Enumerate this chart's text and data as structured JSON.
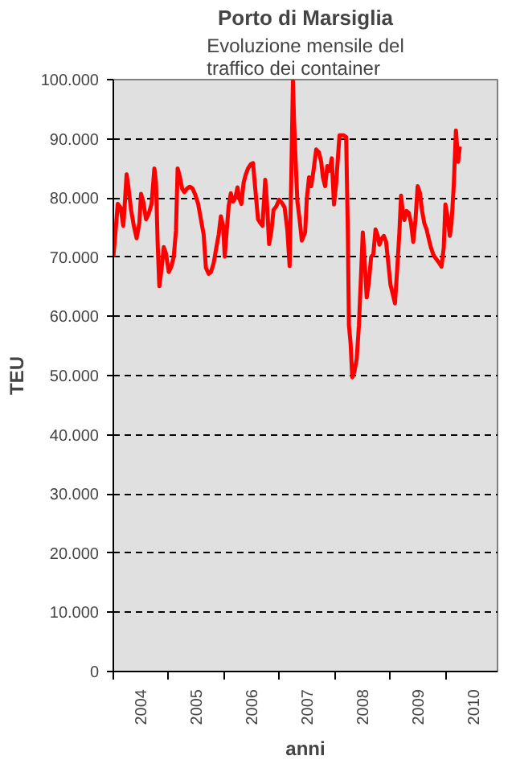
{
  "chart_data": {
    "type": "line",
    "title": "Porto di Marsiglia",
    "subtitle": "Evoluzione mensile del traffico dei container",
    "xlabel": "anni",
    "ylabel": "TEU",
    "x": [
      2004.0,
      2004.03,
      2004.08,
      2004.13,
      2004.18,
      2004.21,
      2004.24,
      2004.27,
      2004.32,
      2004.37,
      2004.42,
      2004.47,
      2004.5,
      2004.54,
      2004.59,
      2004.64,
      2004.69,
      2004.74,
      2004.77,
      2004.8,
      2004.83,
      2004.87,
      2004.91,
      2004.95,
      2005.0,
      2005.05,
      2005.09,
      2005.13,
      2005.16,
      2005.2,
      2005.24,
      2005.28,
      2005.33,
      2005.38,
      2005.43,
      2005.48,
      2005.53,
      2005.58,
      2005.63,
      2005.67,
      2005.72,
      2005.76,
      2005.81,
      2005.86,
      2005.9,
      2005.94,
      2005.98,
      2006.01,
      2006.04,
      2006.08,
      2006.12,
      2006.16,
      2006.2,
      2006.24,
      2006.27,
      2006.31,
      2006.35,
      2006.39,
      2006.43,
      2006.48,
      2006.52,
      2006.56,
      2006.61,
      2006.65,
      2006.69,
      2006.74,
      2006.77,
      2006.81,
      2006.85,
      2006.89,
      2006.94,
      2006.99,
      2007.04,
      2007.09,
      2007.14,
      2007.18,
      2007.21,
      2007.24,
      2007.26,
      2007.29,
      2007.32,
      2007.36,
      2007.4,
      2007.46,
      2007.49,
      2007.53,
      2007.57,
      2007.61,
      2007.66,
      2007.71,
      2007.75,
      2007.78,
      2007.82,
      2007.86,
      2007.9,
      2007.94,
      2007.98,
      2008.02,
      2008.05,
      2008.08,
      2008.15,
      2008.2,
      2008.23,
      2008.25,
      2008.28,
      2008.31,
      2008.35,
      2008.39,
      2008.43,
      2008.47,
      2008.5,
      2008.53,
      2008.57,
      2008.61,
      2008.65,
      2008.69,
      2008.73,
      2008.77,
      2008.8,
      2008.84,
      2008.88,
      2008.92,
      2008.96,
      2009.0,
      2009.04,
      2009.08,
      2009.12,
      2009.16,
      2009.19,
      2009.22,
      2009.25,
      2009.29,
      2009.33,
      2009.37,
      2009.41,
      2009.45,
      2009.49,
      2009.53,
      2009.57,
      2009.61,
      2009.65,
      2009.69,
      2009.73,
      2009.77,
      2009.8,
      2009.84,
      2009.88,
      2009.92,
      2009.96,
      2009.99,
      2010.03,
      2010.07,
      2010.1,
      2010.14,
      2010.18,
      2010.22,
      2010.25
    ],
    "series": [
      {
        "color": "#ff0000",
        "values": [
          70100,
          73200,
          79000,
          78400,
          75300,
          79500,
          84000,
          82000,
          78000,
          75300,
          73200,
          75800,
          80700,
          79400,
          76400,
          77400,
          79000,
          85000,
          82600,
          72200,
          65100,
          68000,
          71700,
          70600,
          67500,
          68500,
          70100,
          74500,
          85000,
          83600,
          81600,
          81000,
          81600,
          81900,
          81600,
          80500,
          79000,
          76400,
          73800,
          68200,
          67200,
          67500,
          69000,
          71700,
          73800,
          76900,
          75300,
          70100,
          73800,
          78600,
          80800,
          79400,
          80000,
          81800,
          80000,
          79000,
          82600,
          84000,
          85000,
          85700,
          85900,
          81600,
          76400,
          75800,
          75300,
          83100,
          79400,
          72200,
          74300,
          78000,
          78600,
          79700,
          79200,
          78400,
          74500,
          68500,
          83600,
          99800,
          93000,
          85900,
          79400,
          76400,
          72800,
          74200,
          79900,
          83500,
          82000,
          84600,
          88200,
          87700,
          86100,
          83500,
          82000,
          85400,
          84600,
          86700,
          78900,
          82500,
          86700,
          90600,
          90600,
          90300,
          74200,
          58500,
          55400,
          49700,
          50700,
          52800,
          58500,
          67400,
          74200,
          70000,
          63200,
          65800,
          70000,
          70500,
          74700,
          73600,
          72100,
          73100,
          73600,
          72600,
          69000,
          65300,
          63800,
          62200,
          67900,
          74200,
          80400,
          77800,
          76300,
          77800,
          77500,
          75700,
          72600,
          76300,
          82000,
          80900,
          77800,
          75700,
          74700,
          73100,
          71600,
          70500,
          70000,
          69500,
          69000,
          68400,
          71600,
          78900,
          76800,
          73600,
          75700,
          82000,
          91400,
          86100,
          88700
        ]
      }
    ],
    "xlim": [
      2004,
      2010.93
    ],
    "xticks": [
      {
        "value": 2004,
        "label": null
      },
      {
        "value": 2005,
        "label": null
      },
      {
        "value": 2006,
        "label": null
      },
      {
        "value": 2007,
        "label": null
      },
      {
        "value": 2008,
        "label": null
      },
      {
        "value": 2009,
        "label": null
      },
      {
        "value": 2010,
        "label": null
      },
      {
        "value": 2004.5,
        "label": "2004"
      },
      {
        "value": 2005.5,
        "label": "2005"
      },
      {
        "value": 2006.5,
        "label": "2006"
      },
      {
        "value": 2007.5,
        "label": "2007"
      },
      {
        "value": 2008.5,
        "label": "2008"
      },
      {
        "value": 2009.5,
        "label": "2009"
      },
      {
        "value": 2010.5,
        "label": "2010"
      }
    ],
    "ylim": [
      0,
      100000
    ],
    "yticks": [
      {
        "value": 0,
        "label": "0"
      },
      {
        "value": 10000,
        "label": "10.000"
      },
      {
        "value": 20000,
        "label": "20.000"
      },
      {
        "value": 30000,
        "label": "30.000"
      },
      {
        "value": 40000,
        "label": "40.000"
      },
      {
        "value": 50000,
        "label": "50.000"
      },
      {
        "value": 60000,
        "label": "60.000"
      },
      {
        "value": 70000,
        "label": "70.000"
      },
      {
        "value": 80000,
        "label": "80.000"
      },
      {
        "value": 90000,
        "label": "90.000"
      },
      {
        "value": 100000,
        "label": "100.000"
      }
    ],
    "grid": "y",
    "marker": "none",
    "line_style": "solid"
  }
}
